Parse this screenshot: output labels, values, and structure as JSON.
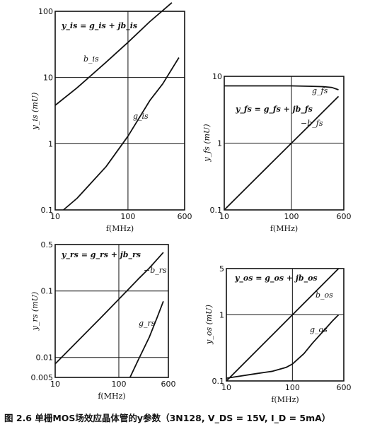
{
  "caption": "图 2.6 单栅MOS场效应晶体管的y参数（3N128, V_DS = 15V, I_D = 5mA）",
  "chart_data": [
    {
      "type": "line",
      "xlabel": "f(MHz)",
      "ylabel": "y_is (mU)",
      "xscale": "log",
      "yscale": "log",
      "xlim": [
        10,
        600
      ],
      "ylim": [
        0.1,
        100
      ],
      "xticks": [
        "10",
        "100",
        "600"
      ],
      "yticks": [
        "0.1",
        "1",
        "10",
        "100"
      ],
      "equation": "y_is = g_is + jb_is",
      "series": [
        {
          "name": "b_is",
          "x": [
            10,
            20,
            50,
            100,
            200,
            400
          ],
          "y": [
            3.8,
            7,
            17,
            34,
            70,
            135
          ]
        },
        {
          "name": "g_is",
          "x": [
            13,
            20,
            50,
            100,
            200,
            300,
            500
          ],
          "y": [
            0.1,
            0.15,
            0.45,
            1.3,
            4.5,
            8,
            20
          ]
        }
      ]
    },
    {
      "type": "line",
      "xlabel": "f(MHz)",
      "ylabel": "y_fs (mU)",
      "xscale": "log",
      "yscale": "log",
      "xlim": [
        10,
        600
      ],
      "ylim": [
        0.1,
        10
      ],
      "xticks": [
        "10",
        "100",
        "600"
      ],
      "yticks": [
        "0.1",
        "1",
        "10"
      ],
      "equation": "y_fs = g_fs + jb_fs",
      "series": [
        {
          "name": "g_fs",
          "x": [
            10,
            50,
            100,
            200,
            300,
            400,
            500
          ],
          "y": [
            7.2,
            7.2,
            7.2,
            7.1,
            7,
            6.8,
            6.3
          ]
        },
        {
          "name": "−b_fs",
          "x": [
            10,
            50,
            100,
            200,
            300,
            500
          ],
          "y": [
            0.1,
            0.5,
            1,
            2,
            3,
            5
          ]
        }
      ]
    },
    {
      "type": "line",
      "xlabel": "f(MHz)",
      "ylabel": "y_rs (mU)",
      "xscale": "log",
      "yscale": "log",
      "xlim": [
        10,
        600
      ],
      "ylim": [
        0.005,
        0.5
      ],
      "xticks": [
        "10",
        "100",
        "600"
      ],
      "yticks": [
        "0.005",
        "0.01",
        "0.1",
        "0.5"
      ],
      "equation": "y_rs = g_rs + jb_rs",
      "series": [
        {
          "name": "−b_rs",
          "x": [
            10,
            50,
            100,
            200,
            300,
            500
          ],
          "y": [
            0.008,
            0.038,
            0.075,
            0.15,
            0.22,
            0.38
          ]
        },
        {
          "name": "g_rs",
          "x": [
            150,
            200,
            300,
            400,
            500
          ],
          "y": [
            0.005,
            0.009,
            0.02,
            0.04,
            0.07
          ]
        }
      ]
    },
    {
      "type": "line",
      "xlabel": "f(MHz)",
      "ylabel": "y_os (mU)",
      "xscale": "log",
      "yscale": "log",
      "xlim": [
        10,
        600
      ],
      "ylim": [
        0.1,
        5
      ],
      "xticks": [
        "10",
        "100",
        "600"
      ],
      "yticks": [
        "0.1",
        "1",
        "5"
      ],
      "equation": "y_os = g_os + jb_os",
      "series": [
        {
          "name": "b_os",
          "x": [
            10,
            50,
            100,
            200,
            300,
            500
          ],
          "y": [
            0.1,
            0.5,
            1,
            2,
            3,
            5
          ]
        },
        {
          "name": "g_os",
          "x": [
            10,
            30,
            50,
            80,
            100,
            150,
            200,
            300,
            400,
            500
          ],
          "y": [
            0.11,
            0.13,
            0.14,
            0.16,
            0.18,
            0.26,
            0.37,
            0.58,
            0.8,
            1.0
          ]
        }
      ]
    }
  ]
}
